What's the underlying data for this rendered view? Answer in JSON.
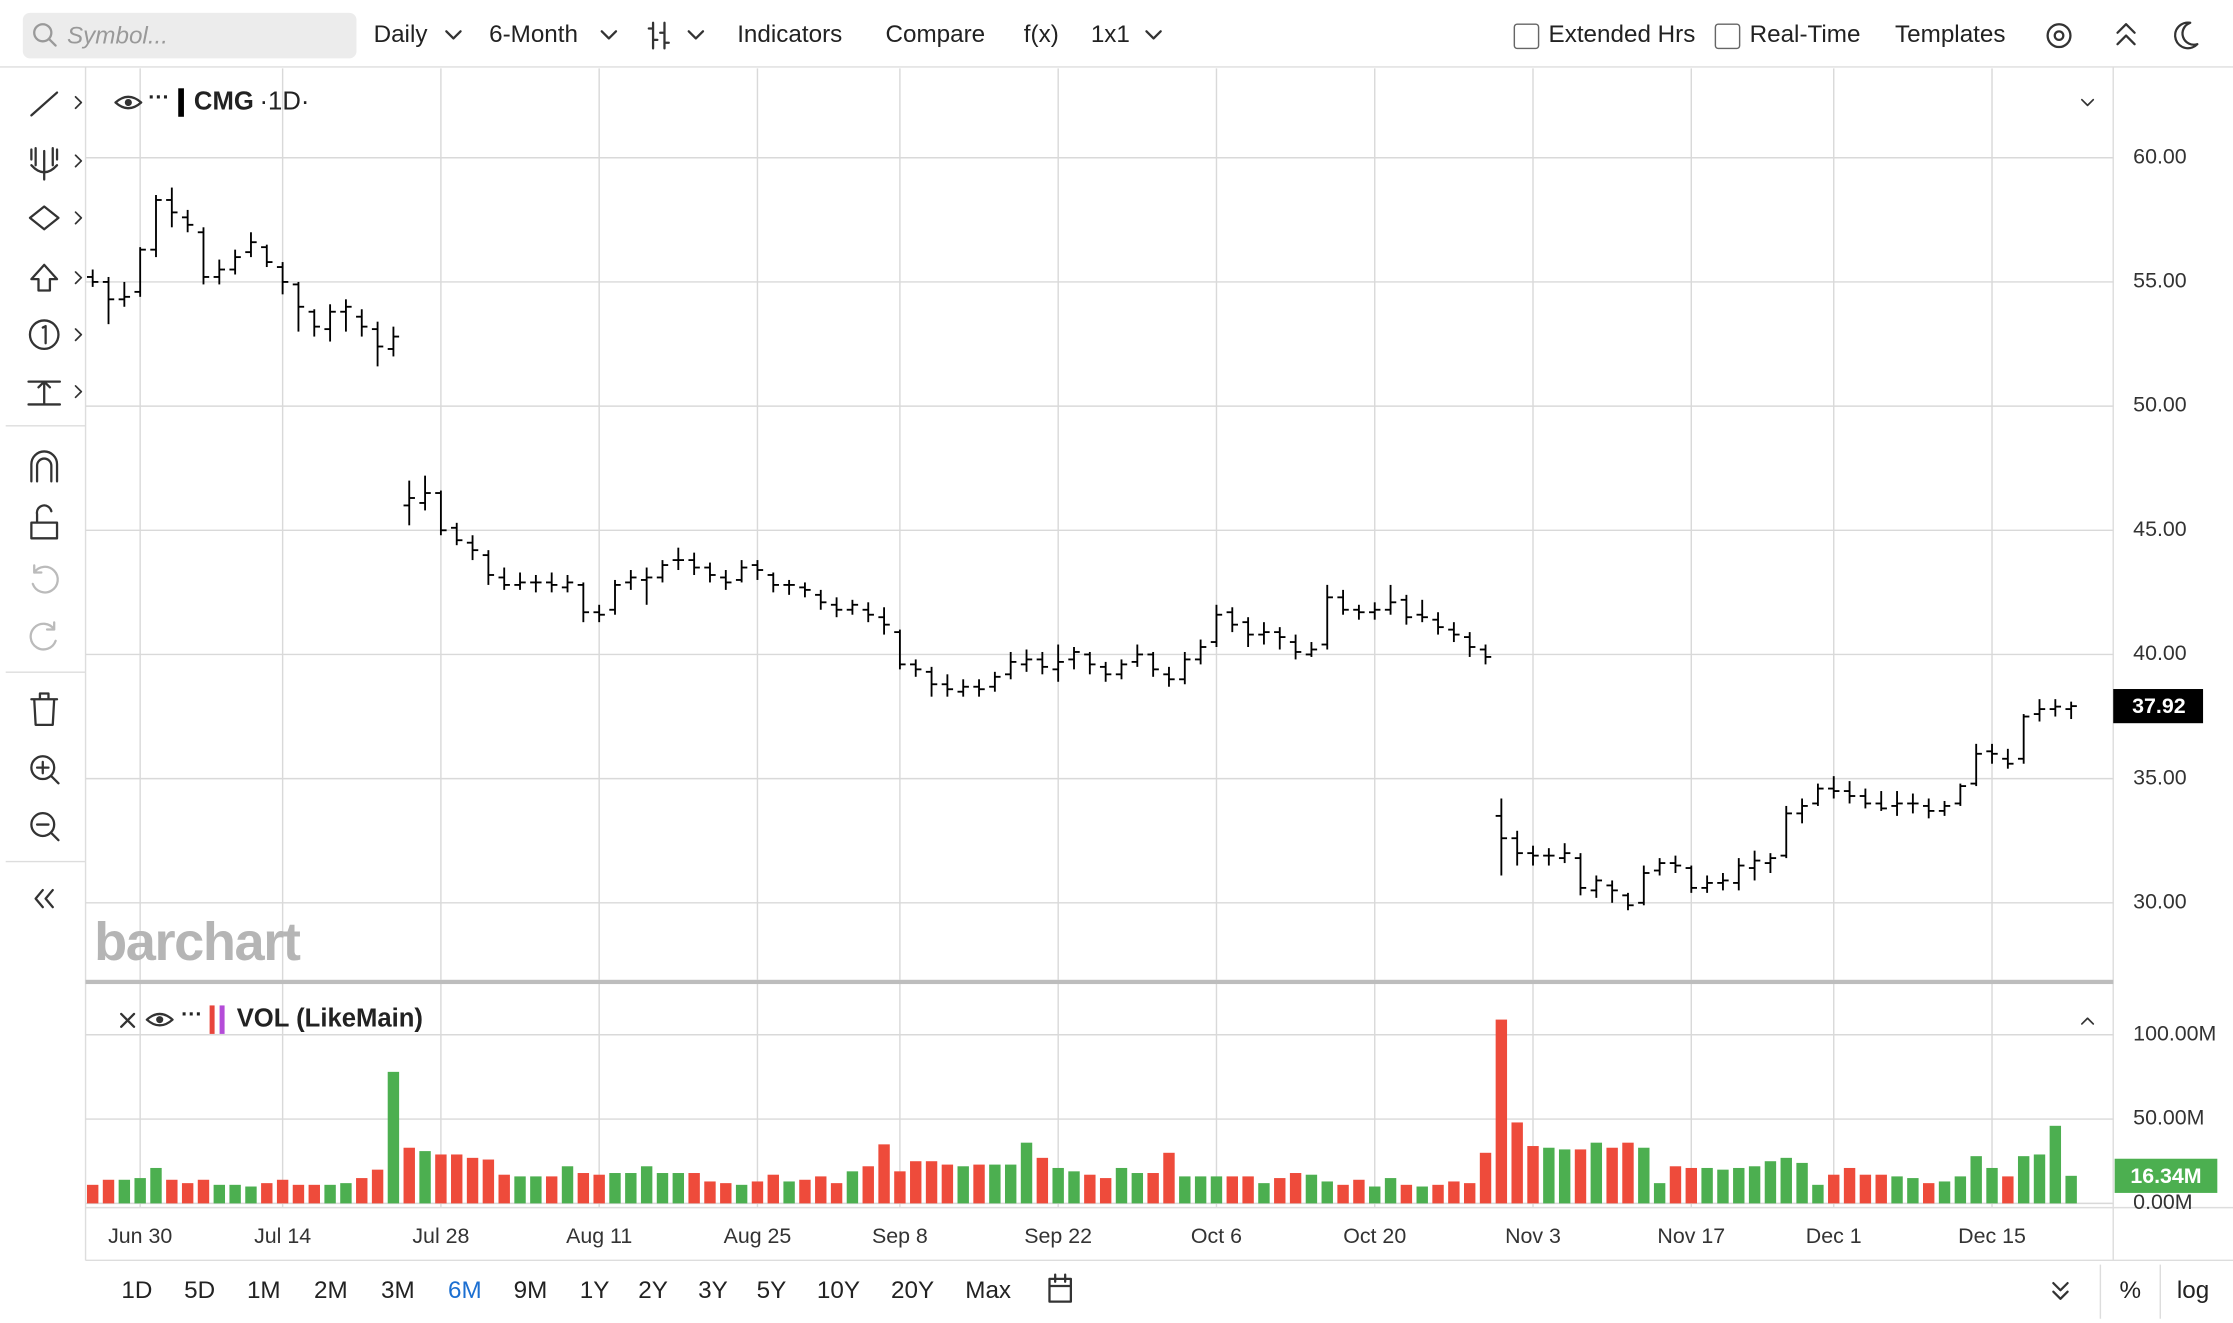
{
  "toolbar": {
    "symbol_placeholder": "Symbol...",
    "interval": "Daily",
    "range": "6-Month",
    "indicators": "Indicators",
    "compare": "Compare",
    "fx": "f(x)",
    "layout": "1x1",
    "extended_hours": "Extended Hrs",
    "real_time": "Real-Time",
    "templates": "Templates"
  },
  "watermark": "barchart",
  "chart_data": [
    {
      "type": "ohlc",
      "title": "CMG",
      "subtitle": "·1D·",
      "grid": true,
      "categories": [
        null,
        null,
        null,
        "Jun 30",
        null,
        null,
        null,
        null,
        null,
        null,
        null,
        null,
        "Jul 14",
        null,
        null,
        null,
        null,
        null,
        null,
        null,
        null,
        null,
        "Jul 28",
        null,
        null,
        null,
        null,
        null,
        null,
        null,
        null,
        null,
        "Aug 11",
        null,
        null,
        null,
        null,
        null,
        null,
        null,
        null,
        null,
        "Aug 25",
        null,
        null,
        null,
        null,
        null,
        null,
        null,
        null,
        "Sep 8",
        null,
        null,
        null,
        null,
        null,
        null,
        null,
        null,
        null,
        "Sep 22",
        null,
        null,
        null,
        null,
        null,
        null,
        null,
        null,
        null,
        "Oct 6",
        null,
        null,
        null,
        null,
        null,
        null,
        null,
        null,
        null,
        "Oct 20",
        null,
        null,
        null,
        null,
        null,
        null,
        null,
        null,
        null,
        "Nov 3",
        null,
        null,
        null,
        null,
        null,
        null,
        null,
        null,
        null,
        "Nov 17",
        null,
        null,
        null,
        null,
        null,
        null,
        null,
        null,
        "Dec 1",
        null,
        null,
        null,
        null,
        null,
        null,
        null,
        null,
        null,
        "Dec 15",
        null,
        null,
        null,
        null,
        null
      ],
      "series": [
        {
          "name": "CMG",
          "color": "#000000",
          "open": [
            55.2,
            55.0,
            54.3,
            54.6,
            56.3,
            58.3,
            57.6,
            57.0,
            55.2,
            55.5,
            56.2,
            56.4,
            55.6,
            54.9,
            53.8,
            53.1,
            53.8,
            53.6,
            53.1,
            52.3,
            46.0,
            46.1,
            46.5,
            45.1,
            44.5,
            44.0,
            43.1,
            42.8,
            42.9,
            42.9,
            42.7,
            42.8,
            41.7,
            41.8,
            42.9,
            43.0,
            43.1,
            43.8,
            43.8,
            43.5,
            43.1,
            43.0,
            43.6,
            43.2,
            42.8,
            42.7,
            42.4,
            42.0,
            41.8,
            41.8,
            41.5,
            40.9,
            39.6,
            39.3,
            38.8,
            38.5,
            38.7,
            38.7,
            39.2,
            39.6,
            39.8,
            39.4,
            39.8,
            40.0,
            39.5,
            39.2,
            39.7,
            40.0,
            39.2,
            39.0,
            39.8,
            40.5,
            41.7,
            41.3,
            40.8,
            40.9,
            40.5,
            40.0,
            40.4,
            42.3,
            41.8,
            41.7,
            41.8,
            42.2,
            41.6,
            41.4,
            41.0,
            40.7,
            40.2,
            33.5,
            32.6,
            32.0,
            31.9,
            31.8,
            31.8,
            30.5,
            30.7,
            30.3,
            30.0,
            31.3,
            31.6,
            31.4,
            30.6,
            30.8,
            30.8,
            31.4,
            31.6,
            31.9,
            33.6,
            34.0,
            34.6,
            34.5,
            34.3,
            34.0,
            33.9,
            34.0,
            33.9,
            33.7,
            34.0,
            34.8,
            36.1,
            35.8,
            35.8,
            37.6,
            37.8,
            37.8
          ],
          "high": [
            55.5,
            55.2,
            55.0,
            56.4,
            58.5,
            58.8,
            57.9,
            57.2,
            55.9,
            56.3,
            57.0,
            56.5,
            55.8,
            55.0,
            53.9,
            54.1,
            54.3,
            53.9,
            53.4,
            53.2,
            47.0,
            47.2,
            46.6,
            45.3,
            44.8,
            44.2,
            43.5,
            43.3,
            43.2,
            43.3,
            43.2,
            42.9,
            42.0,
            43.0,
            43.4,
            43.5,
            43.8,
            44.3,
            44.1,
            43.7,
            43.4,
            43.8,
            43.8,
            43.3,
            43.0,
            42.9,
            42.6,
            42.3,
            42.2,
            42.1,
            41.9,
            41.0,
            39.8,
            39.5,
            39.2,
            39.0,
            39.0,
            39.3,
            40.1,
            40.2,
            40.1,
            40.4,
            40.3,
            40.1,
            39.7,
            39.8,
            40.4,
            40.1,
            39.5,
            40.1,
            40.6,
            42.0,
            41.9,
            41.5,
            41.3,
            41.1,
            40.8,
            40.5,
            42.8,
            42.6,
            42.0,
            42.1,
            42.8,
            42.4,
            42.2,
            41.7,
            41.3,
            40.9,
            40.4,
            34.2,
            32.9,
            32.3,
            32.2,
            32.4,
            32.0,
            31.1,
            30.9,
            30.4,
            31.5,
            31.8,
            31.9,
            31.5,
            31.1,
            31.2,
            31.8,
            32.1,
            32.0,
            33.9,
            34.2,
            34.8,
            35.1,
            34.9,
            34.6,
            34.5,
            34.5,
            34.4,
            34.2,
            34.1,
            34.8,
            36.4,
            36.4,
            36.2,
            37.6,
            38.2,
            38.2,
            38.1
          ],
          "low": [
            54.8,
            53.3,
            54.0,
            54.4,
            56.0,
            57.2,
            57.0,
            54.9,
            54.9,
            55.3,
            56.0,
            55.6,
            54.5,
            53.0,
            52.8,
            52.6,
            53.0,
            52.8,
            51.6,
            52.0,
            45.2,
            45.8,
            44.8,
            44.4,
            43.8,
            42.8,
            42.6,
            42.6,
            42.5,
            42.5,
            42.5,
            41.3,
            41.3,
            41.6,
            42.6,
            42.0,
            42.9,
            43.4,
            43.2,
            42.9,
            42.6,
            42.9,
            43.0,
            42.5,
            42.4,
            42.3,
            41.8,
            41.5,
            41.6,
            41.3,
            40.8,
            39.4,
            39.1,
            38.3,
            38.3,
            38.3,
            38.3,
            38.5,
            39.0,
            39.3,
            39.2,
            38.9,
            39.4,
            39.2,
            38.9,
            39.0,
            39.5,
            39.1,
            38.7,
            38.8,
            39.6,
            40.3,
            40.9,
            40.3,
            40.4,
            40.2,
            39.8,
            39.9,
            40.2,
            41.6,
            41.4,
            41.4,
            41.6,
            41.2,
            41.3,
            40.8,
            40.5,
            39.9,
            39.6,
            31.1,
            31.5,
            31.5,
            31.5,
            31.6,
            30.3,
            30.2,
            30.0,
            29.7,
            29.9,
            31.1,
            31.2,
            30.4,
            30.4,
            30.5,
            30.5,
            30.9,
            31.2,
            31.8,
            33.2,
            33.9,
            34.2,
            34.0,
            33.8,
            33.7,
            33.5,
            33.6,
            33.4,
            33.5,
            33.9,
            34.7,
            35.6,
            35.4,
            35.6,
            37.3,
            37.5,
            37.4
          ],
          "values": [
            55.0,
            54.3,
            54.4,
            56.3,
            58.3,
            57.8,
            57.3,
            55.2,
            55.5,
            56.0,
            56.6,
            55.8,
            55.0,
            54.0,
            53.2,
            53.8,
            54.0,
            53.2,
            52.4,
            52.8,
            46.3,
            46.5,
            45.0,
            44.6,
            44.2,
            43.2,
            42.8,
            42.9,
            42.9,
            42.8,
            42.9,
            41.7,
            41.6,
            42.8,
            43.1,
            43.1,
            43.6,
            43.8,
            43.5,
            43.2,
            42.9,
            43.5,
            43.4,
            42.8,
            42.8,
            42.6,
            42.1,
            41.8,
            42.0,
            41.6,
            41.2,
            39.6,
            39.4,
            38.8,
            38.6,
            38.7,
            38.6,
            39.1,
            39.7,
            39.8,
            39.5,
            39.7,
            40.1,
            39.6,
            39.2,
            39.6,
            40.0,
            39.4,
            39.0,
            39.8,
            40.3,
            41.6,
            41.2,
            40.8,
            40.9,
            40.7,
            40.1,
            40.2,
            42.3,
            41.8,
            41.7,
            41.8,
            42.1,
            41.5,
            41.5,
            41.1,
            40.8,
            40.3,
            39.9,
            32.6,
            32.0,
            31.9,
            31.9,
            32.0,
            30.6,
            30.9,
            30.5,
            29.9,
            31.2,
            31.6,
            31.5,
            30.6,
            30.8,
            30.9,
            31.5,
            31.7,
            31.8,
            33.6,
            33.9,
            34.6,
            34.5,
            34.3,
            34.0,
            33.8,
            34.0,
            34.0,
            33.7,
            33.9,
            34.7,
            36.0,
            36.0,
            35.6,
            37.5,
            37.8,
            37.9,
            37.92
          ]
        }
      ],
      "ylim": [
        26.9,
        63.6
      ],
      "yticks": [
        {
          "value": 30,
          "label": "30.00"
        },
        {
          "value": 35,
          "label": "35.00"
        },
        {
          "value": 40,
          "label": "40.00"
        },
        {
          "value": 45,
          "label": "45.00"
        },
        {
          "value": 50,
          "label": "50.00"
        },
        {
          "value": 55,
          "label": "55.00"
        },
        {
          "value": 60,
          "label": "60.00"
        }
      ]
    },
    {
      "type": "bar",
      "title": "VOL (LikeMain)",
      "grid": true,
      "up_color": "#4caf50",
      "down_color": "#ee4b3b",
      "values": [
        11,
        14,
        14,
        15,
        21,
        14,
        12,
        14,
        11,
        11,
        10,
        12,
        14,
        11,
        11,
        11,
        12,
        15,
        20,
        78,
        33,
        31,
        29,
        29,
        27,
        26,
        17,
        16,
        16,
        16,
        22,
        18,
        17,
        18,
        18,
        22,
        18,
        18,
        18,
        13,
        12,
        11,
        13,
        17,
        13,
        14,
        16,
        12,
        19,
        22,
        35,
        19,
        25,
        25,
        23,
        22,
        23,
        23,
        23,
        36,
        27,
        21,
        19,
        17,
        15,
        21,
        18,
        18,
        30,
        16,
        16,
        16,
        16,
        16,
        12,
        15,
        18,
        17,
        13,
        11,
        14,
        10,
        15,
        11,
        10,
        11,
        13,
        12,
        30,
        109,
        48,
        34,
        33,
        32,
        32,
        36,
        33,
        36,
        33,
        12,
        22,
        21,
        21,
        20,
        21,
        22,
        25,
        27,
        24,
        11,
        17,
        21,
        17,
        17,
        16,
        15,
        12,
        13,
        16,
        28,
        21,
        16,
        28,
        29,
        46,
        16.34
      ],
      "value_labels": [
        null,
        null,
        null,
        null,
        null,
        null,
        null,
        null,
        null,
        null,
        null,
        null,
        null,
        null,
        null,
        null,
        null,
        null,
        null,
        null,
        null,
        null,
        null,
        null,
        null,
        null,
        null,
        null,
        null,
        null,
        null,
        null,
        null,
        null,
        null,
        null,
        null,
        null,
        null,
        null,
        null,
        null,
        null,
        null,
        null,
        null,
        null,
        null,
        null,
        null,
        null,
        null,
        null,
        null,
        null,
        null,
        null,
        null,
        null,
        null,
        null,
        null,
        null,
        null,
        null,
        null,
        null,
        null,
        null,
        null,
        null,
        null,
        null,
        null,
        null,
        null,
        null,
        null,
        null,
        null,
        null,
        null,
        null,
        null,
        null,
        null,
        null,
        null,
        null,
        null,
        null,
        null,
        null,
        null,
        null,
        null,
        null,
        null,
        null,
        null,
        null,
        null,
        null,
        null,
        null,
        null,
        null,
        null,
        null,
        null,
        null,
        null,
        null,
        null,
        null,
        null,
        null,
        null,
        null,
        null,
        null,
        null,
        null,
        null,
        null,
        "16.34M"
      ],
      "ylim": [
        0,
        125
      ],
      "yticks": [
        {
          "value": 0,
          "label": "0.00M"
        },
        {
          "value": 50,
          "label": "50.00M"
        },
        {
          "value": 100,
          "label": "100.00M"
        }
      ]
    }
  ],
  "range_buttons": [
    "1D",
    "5D",
    "1M",
    "2M",
    "3M",
    "6M",
    "9M",
    "1Y",
    "2Y",
    "3Y",
    "5Y",
    "10Y",
    "20Y",
    "Max"
  ],
  "active_range": "6M",
  "percent": "%",
  "log": "log"
}
